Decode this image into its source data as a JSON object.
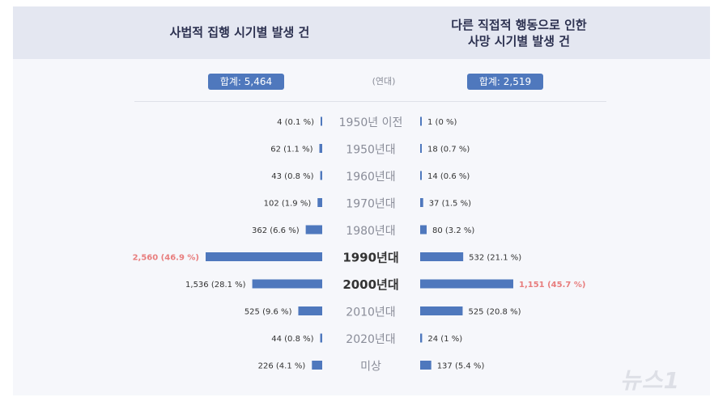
{
  "header": {
    "left_title": "사법적 집행 시기별 발생 건",
    "right_title_line1": "다른 직접적 행동으로 인한",
    "right_title_line2": "사망 시기별 발생 건"
  },
  "totals": {
    "left": "합계: 5,464",
    "right": "합계: 2,519",
    "middle_header": "(연대)"
  },
  "colors": {
    "bar": "#4f78bd",
    "highlight_label": "#e87d7d",
    "label": "#333333",
    "decade": "#8a8d99",
    "decade_bold": "#333333"
  },
  "chart_data": {
    "type": "bar",
    "categories": [
      "1950년 이전",
      "1950년대",
      "1960년대",
      "1970년대",
      "1980년대",
      "1990년대",
      "2000년대",
      "2010년대",
      "2020년대",
      "미상"
    ],
    "highlighted_categories": [
      "1990년대",
      "2000년대"
    ],
    "series": [
      {
        "name": "사법적 집행 시기별 발생 건",
        "direction": "left",
        "values": [
          4,
          62,
          43,
          102,
          362,
          2560,
          1536,
          525,
          44,
          226
        ],
        "labels": [
          "4 (0.1 %)",
          "62 (1.1 %)",
          "43 (0.8 %)",
          "102 (1.9 %)",
          "362 (6.6 %)",
          "2,560 (46.9 %)",
          "1,536 (28.1 %)",
          "525 (9.6 %)",
          "44 (0.8 %)",
          "226 (4.1 %)"
        ],
        "max_index": 5
      },
      {
        "name": "다른 직접적 행동으로 인한 사망 시기별 발생 건",
        "direction": "right",
        "values": [
          1,
          18,
          14,
          37,
          80,
          532,
          1151,
          525,
          24,
          137
        ],
        "labels": [
          "1 (0 %)",
          "18 (0.7 %)",
          "14 (0.6 %)",
          "37 (1.5 %)",
          "80 (3.2 %)",
          "532 (21.1 %)",
          "1,151 (45.7 %)",
          "525 (20.8 %)",
          "24 (1 %)",
          "137 (5.4 %)"
        ],
        "max_index": 6
      }
    ]
  },
  "watermark": "뉴스1"
}
